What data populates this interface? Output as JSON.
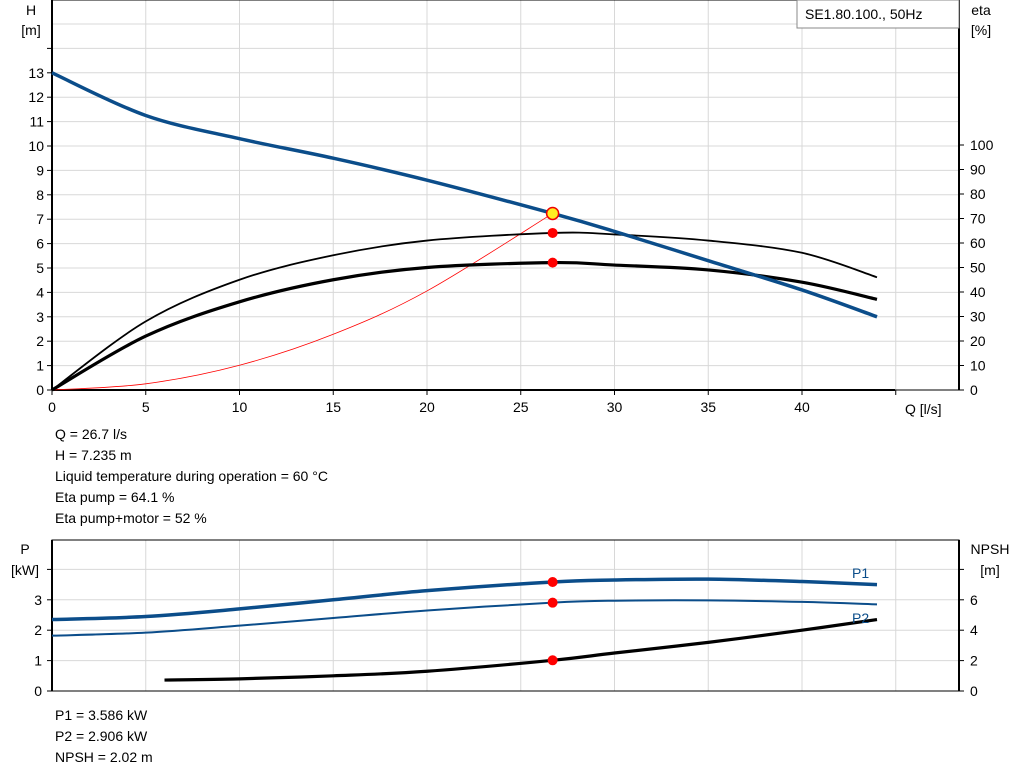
{
  "chart_data": [
    {
      "type": "line",
      "title": "SE1.80.100., 50Hz",
      "xlabel": "Q [l/s]",
      "ylabel": "H",
      "yunit": "[m]",
      "y2label": "eta",
      "y2unit": "[%]",
      "xlim": [
        0,
        46
      ],
      "ylim": [
        0,
        16
      ],
      "y2lim": [
        0,
        100
      ],
      "xticks": [
        0,
        5,
        10,
        15,
        20,
        25,
        30,
        35,
        40
      ],
      "yticks": [
        0,
        1,
        2,
        3,
        4,
        5,
        6,
        7,
        8,
        9,
        10,
        11,
        12,
        13
      ],
      "y2ticks": [
        0,
        10,
        20,
        30,
        40,
        50,
        60,
        70,
        80,
        90,
        100
      ],
      "grid": true,
      "series": [
        {
          "axis": "H",
          "color": "#0b4d8a",
          "x": [
            0,
            5,
            10,
            15,
            20,
            26.7,
            30,
            35,
            40,
            44
          ],
          "y": [
            13,
            11.25,
            10.3,
            9.5,
            8.6,
            7.235,
            6.5,
            5.3,
            4.1,
            3.0
          ]
        },
        {
          "axis": "eta",
          "color": "#000000",
          "x": [
            0,
            5,
            10,
            15,
            20,
            26.7,
            30,
            35,
            40,
            44
          ],
          "y": [
            0,
            28,
            45,
            55,
            61,
            64.1,
            63.5,
            61,
            56,
            46
          ]
        },
        {
          "axis": "eta",
          "color": "#000000",
          "x": [
            0,
            5,
            10,
            15,
            20,
            26.7,
            30,
            35,
            40,
            44
          ],
          "y": [
            0,
            22,
            36,
            45,
            50,
            52,
            51,
            49,
            44,
            37
          ]
        },
        {
          "axis": "H",
          "color": "#ff0000",
          "kind": "system",
          "x": [
            0,
            5,
            10,
            15,
            20,
            26.7
          ],
          "y": [
            0,
            0.254,
            1.015,
            2.284,
            4.06,
            7.235
          ]
        }
      ],
      "operating_point": {
        "Q": 26.7,
        "H": 7.235,
        "eta_pump": 64.1,
        "eta_pump_motor": 52
      }
    },
    {
      "type": "line",
      "ylabel": "P",
      "yunit": "[kW]",
      "y2label": "NPSH",
      "y2unit": "[m]",
      "xlim": [
        0,
        46
      ],
      "ylim": [
        0,
        5
      ],
      "y2lim": [
        0,
        10
      ],
      "yticks": [
        0,
        1,
        2,
        3
      ],
      "y2ticks": [
        0,
        2,
        4,
        6
      ],
      "grid": true,
      "series": [
        {
          "name": "P1",
          "axis": "P",
          "color": "#0b4d8a",
          "x": [
            0,
            5,
            10,
            15,
            20,
            26.7,
            30,
            35,
            40,
            44
          ],
          "y": [
            2.35,
            2.45,
            2.7,
            3.0,
            3.3,
            3.586,
            3.65,
            3.68,
            3.6,
            3.5
          ]
        },
        {
          "name": "P2",
          "axis": "P",
          "color": "#0b4d8a",
          "x": [
            0,
            5,
            10,
            15,
            20,
            26.7,
            30,
            35,
            40,
            44
          ],
          "y": [
            1.82,
            1.92,
            2.15,
            2.4,
            2.65,
            2.906,
            2.97,
            2.98,
            2.93,
            2.85
          ]
        },
        {
          "axis": "NPSH",
          "color": "#000000",
          "x": [
            6,
            10,
            15,
            20,
            26.7,
            30,
            35,
            40,
            44
          ],
          "y": [
            0.72,
            0.8,
            1.0,
            1.3,
            2.02,
            2.5,
            3.2,
            4.0,
            4.7
          ]
        }
      ],
      "operating_point": {
        "Q": 26.7,
        "P1": 3.586,
        "P2": 2.906,
        "NPSH": 2.02
      }
    }
  ],
  "readout_top": [
    "Q = 26.7 l/s",
    "H = 7.235 m",
    "Liquid temperature during operation = 60 °C",
    "Eta pump = 64.1 %",
    "Eta pump+motor = 52 %"
  ],
  "readout_bottom": [
    "P1 = 3.586 kW",
    "P2 = 2.906 kW",
    "NPSH = 2.02 m"
  ]
}
